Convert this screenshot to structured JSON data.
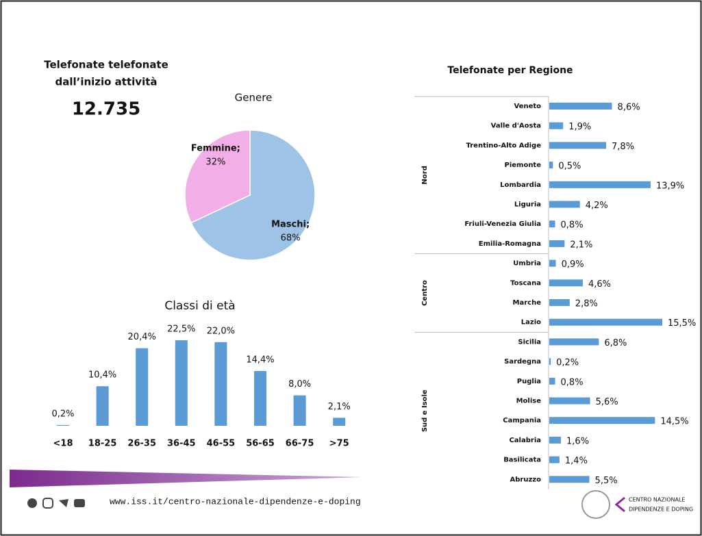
{
  "header": {
    "line1": "Telefonate telefonate",
    "line2": "dall’inizio  attività",
    "total": "12.735"
  },
  "footer": {
    "url": "www.iss.it/centro-nazionale-dipendenze-e-doping",
    "logo_line1": "CENTRO NAZIONALE",
    "logo_line2": "DIPENDENZE E DOPING"
  },
  "chart_data": [
    {
      "type": "pie",
      "title": "Genere",
      "categories": [
        "Maschi;",
        "Femmine;"
      ],
      "values": [
        68,
        32
      ],
      "value_labels": [
        "68%",
        "32%"
      ],
      "colors": [
        "#9dc3e6",
        "#f2aee6"
      ]
    },
    {
      "type": "bar",
      "title": "Classi di età",
      "categories": [
        "<18",
        "18-25",
        "26-35",
        "36-45",
        "46-55",
        "56-65",
        "66-75",
        ">75"
      ],
      "values": [
        0.2,
        10.4,
        20.4,
        22.5,
        22.0,
        14.4,
        8.0,
        2.1
      ],
      "value_labels": [
        "0,2%",
        "10,4%",
        "20,4%",
        "22,5%",
        "22,0%",
        "14,4%",
        "8,0%",
        "2,1%"
      ],
      "color": "#5b9bd5"
    },
    {
      "type": "hbar",
      "title": "Telefonate per Regione",
      "color": "#5b9bd5",
      "groups": [
        {
          "name": "Nord",
          "categories": [
            "Veneto",
            "Valle d'Aosta",
            "Trentino-Alto Adige",
            "Piemonte",
            "Lombardia",
            "Liguria",
            "Friuli-Venezia Giulia",
            "Emilia-Romagna"
          ],
          "values": [
            8.6,
            1.9,
            7.8,
            0.5,
            13.9,
            4.2,
            0.8,
            2.1
          ],
          "value_labels": [
            "8,6%",
            "1,9%",
            "7,8%",
            "0,5%",
            "13,9%",
            "4,2%",
            "0,8%",
            "2,1%"
          ]
        },
        {
          "name": "Centro",
          "categories": [
            "Umbria",
            "Toscana",
            "Marche",
            "Lazio"
          ],
          "values": [
            0.9,
            4.6,
            2.8,
            15.5
          ],
          "value_labels": [
            "0,9%",
            "4,6%",
            "2,8%",
            "15,5%"
          ]
        },
        {
          "name": "Sud e Isole",
          "categories": [
            "Sicilia",
            "Sardegna",
            "Puglia",
            "Molise",
            "Campania",
            "Calabria",
            "Basilicata",
            "Abruzzo"
          ],
          "values": [
            6.8,
            0.2,
            0.8,
            5.6,
            14.5,
            1.6,
            1.4,
            5.5
          ],
          "value_labels": [
            "6,8%",
            "0,2%",
            "0,8%",
            "5,6%",
            "14,5%",
            "1,6%",
            "1,4%",
            "5,5%"
          ]
        }
      ]
    }
  ]
}
